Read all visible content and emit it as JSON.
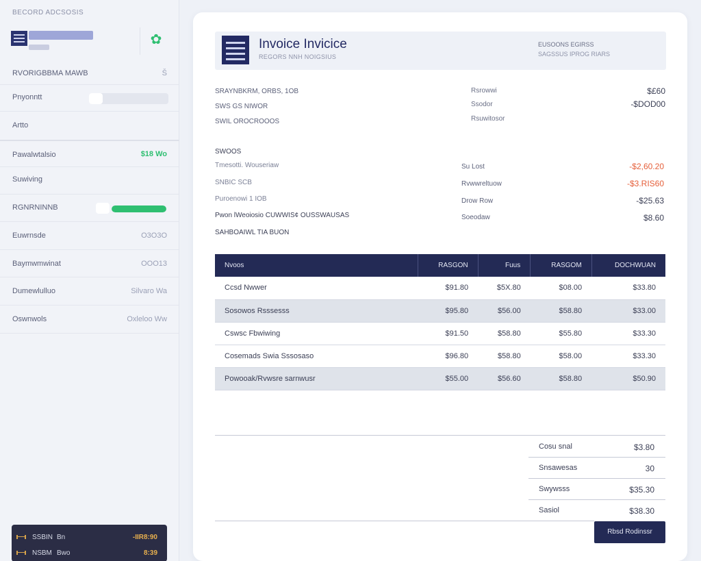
{
  "sidebar": {
    "title": "BECORD ADCSOSIS",
    "rows": [
      {
        "label": "RVORIGBBMA MAWB",
        "value": "Š"
      },
      {
        "label": "Pnyonntt",
        "value": ""
      },
      {
        "label": "Artto",
        "value": ""
      },
      {
        "label": "Pawalwtalsio",
        "value": "$18 Wo"
      },
      {
        "label": "Suwiving",
        "value": ""
      },
      {
        "label": "RGNRNINNB",
        "value": ""
      },
      {
        "label": "Euwrnsde",
        "value": "O3O3O"
      },
      {
        "label": "Baymwmwinat",
        "value": "OOO13"
      },
      {
        "label": "Dumewlulluo",
        "value": "Silvaro Wa"
      },
      {
        "label": "Oswnwols",
        "value": "Oxleloo Ww"
      }
    ],
    "progress": 1.0,
    "card": [
      {
        "a": "SSBIN",
        "b": "Bn",
        "value": "-IIR8:90"
      },
      {
        "a": "NSBM",
        "b": "Bwo",
        "value": "8:39"
      }
    ]
  },
  "invoice": {
    "title": "Invoice Invicice",
    "subtitle": "REGORS NNH NOIGSIUS",
    "header_right_1": "EUSOONS EGIRSS",
    "header_right_2": "SAGSSUS IPROG RIARS",
    "meta_left": [
      "SRAYNBKRM, ORBS, 1OB",
      "SWS GS NIWOR",
      "SWIL OROCROOOS"
    ],
    "meta_mid": [
      "Rsrowwi",
      "Ssodor",
      "Rsuwitosor"
    ],
    "meta_values": [
      "$£60",
      "-$DOD00"
    ],
    "section_title": "SWOOS",
    "adjust_left": [
      "Tmesotti. Wouseriaw",
      "SNBIC SCB",
      "Puroenowi 1 IOB",
      "Pwon lWeoiosio CUWWIS¢ OUSSWAUSAS",
      "SAHBOAIWL TIA BUON"
    ],
    "adjust_mid": [
      "Su Lost",
      "Rvwwreltuow",
      "Drow Row",
      "Soeodaw"
    ],
    "adjust_values": [
      "-$2,60.20",
      "-$3.RIS60",
      "-$25.63",
      "$8.60"
    ],
    "table": {
      "headers": [
        "Nvoos",
        "RASGON",
        "Fuus",
        "RASGOM",
        "DOCHWUAN"
      ],
      "rows": [
        [
          "Ccsd Nwwer",
          "$91.80",
          "$5X.80",
          "$08.00",
          "$33.80"
        ],
        [
          "Sosowos Rsssesss",
          "$95.80",
          "$56.00",
          "$58.80",
          "$33.00"
        ],
        [
          "Cswsc Fbwiwing",
          "$91.50",
          "$58.80",
          "$55.80",
          "$33.30"
        ],
        [
          "Cosemads Swia Sssosaso",
          "$96.80",
          "$58.80",
          "$58.00",
          "$33.30"
        ],
        [
          "Powooak/Rvwsre sarnwusr",
          "$55.00",
          "$56.60",
          "$58.80",
          "$50.90"
        ]
      ]
    },
    "totals": [
      {
        "label": "Cosu snal",
        "value": "$3.80"
      },
      {
        "label": "Snsawesas",
        "value": "30"
      },
      {
        "label": "Swywsss",
        "value": "$35.30"
      },
      {
        "label": "Sasiol",
        "value": "$38.30"
      }
    ],
    "pay_button": "Rbsd Rodinssr"
  }
}
